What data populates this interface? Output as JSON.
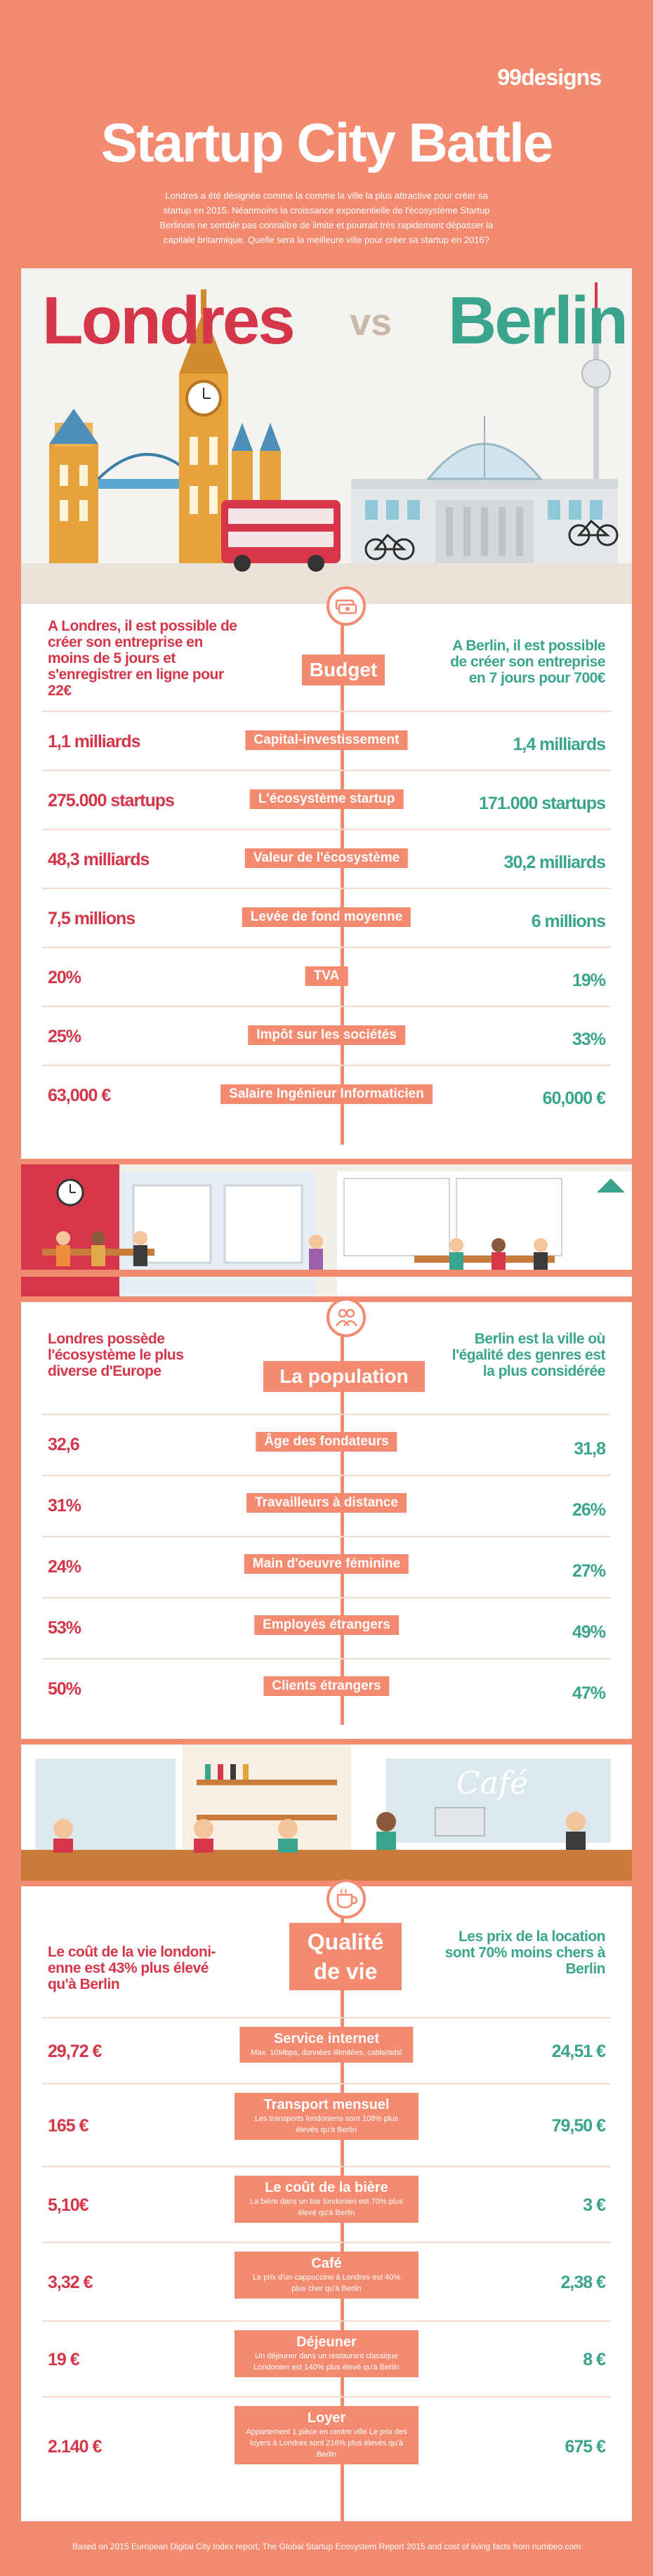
{
  "header": {
    "logo": "99designs",
    "title": "Startup City Battle",
    "intro": "Londres a été désignée comme la comme la ville la plus attractive pour créer sa startup en 2015. Néanmoins la croissance exponentielle de l'écosystème Startup Berlinois ne semble pas connaître de limite et pourrait très rapidement dépasser la capitale britannique. Quelle sera la meilleure ville pour créer sa startup en 2016?"
  },
  "versus": {
    "left": "Londres",
    "mid": "vs",
    "right": "Berlin"
  },
  "budget": {
    "title": "Budget",
    "left_text": "A Londres, il est possible de créer son entreprise en moins de 5 jours et s'enregistrer en ligne pour 22€",
    "right_text": "A Berlin, il est possible de créer son entreprise en 7 jours pour 700€",
    "rows": [
      {
        "label": "Capital-investissement",
        "left": "1,1 milliards",
        "right": "1,4 milliards"
      },
      {
        "label": "L'écosystème startup",
        "left": "275.000 startups",
        "right": "171.000 startups"
      },
      {
        "label": "Valeur de l'écosystème",
        "left": "48,3 milliards",
        "right": "30,2 milliards"
      },
      {
        "label": "Levée de fond moyenne",
        "left": "7,5 millions",
        "right": "6 millions"
      },
      {
        "label": "TVA",
        "left": "20%",
        "right": "19%"
      },
      {
        "label": "Impôt sur les sociétés",
        "left": "25%",
        "right": "33%"
      },
      {
        "label": "Salaire Ingénieur Informaticien",
        "left": "63,000 €",
        "right": "60,000 €"
      }
    ]
  },
  "population": {
    "title": "La population",
    "left_text": "Londres possède l'écosystème le plus diverse d'Europe",
    "right_text": "Berlin est la ville où l'égalité des genres est la plus considérée",
    "rows": [
      {
        "label": "Âge des fondateurs",
        "left": "32,6",
        "right": "31,8"
      },
      {
        "label": "Travailleurs à distance",
        "left": "31%",
        "right": "26%"
      },
      {
        "label": "Main d'oeuvre féminine",
        "left": "24%",
        "right": "27%"
      },
      {
        "label": "Employés étrangers",
        "left": "53%",
        "right": "49%"
      },
      {
        "label": "Clients étrangers",
        "left": "50%",
        "right": "47%"
      }
    ]
  },
  "quality": {
    "title_line1": "Qualité",
    "title_line2": "de vie",
    "left_text": "Le coût de la vie londoni-enne est 43% plus élevé qu'à Berlin",
    "right_text": "Les prix de la location sont 70% moins chers à Berlin",
    "cafe_sign": "Café",
    "rows": [
      {
        "label": "Service internet",
        "sub": "Max. 10Mbps, données illimitées, cable/adsl",
        "left": "29,72 €",
        "right": "24,51 €"
      },
      {
        "label": "Transport mensuel",
        "sub": "Les transports londoniens sont 108% plus élevés qu'à Berlin",
        "left": "165 €",
        "right": "79,50 €"
      },
      {
        "label": "Le coût de la bière",
        "sub": "La bière dans un bar londonien est 70% plus élevé qu'à Berlin",
        "left": "5,10€",
        "right": "3 €"
      },
      {
        "label": "Café",
        "sub": "Le prix d'un cappuccino à Londres est 40% plus cher qu'à Berlin",
        "left": "3,32 €",
        "right": "2,38 €"
      },
      {
        "label": "Déjeuner",
        "sub": "Un déjeuner dans un restaurant classique Londonien est 140% plus élevé qu'à Berlin",
        "left": "19 €",
        "right": "8 €"
      },
      {
        "label": "Loyer",
        "sub": "Appartement 1 pièce en centre ville Le prix des loyers à Londres sont 216% plus élevés qu'à Berlin",
        "left": "2.140 €",
        "right": "675 €"
      }
    ]
  },
  "footer": {
    "source": "Based on 2015 European Digital City Index report, The Global Startup Ecosystem Report 2015 and cost of living facts from numbeo.com"
  },
  "colors": {
    "coral": "#f48a6f",
    "london_red": "#d5364a",
    "berlin_green": "#3aa58c"
  },
  "icons": [
    "money-stack-icon",
    "people-icon",
    "coffee-cup-icon"
  ]
}
